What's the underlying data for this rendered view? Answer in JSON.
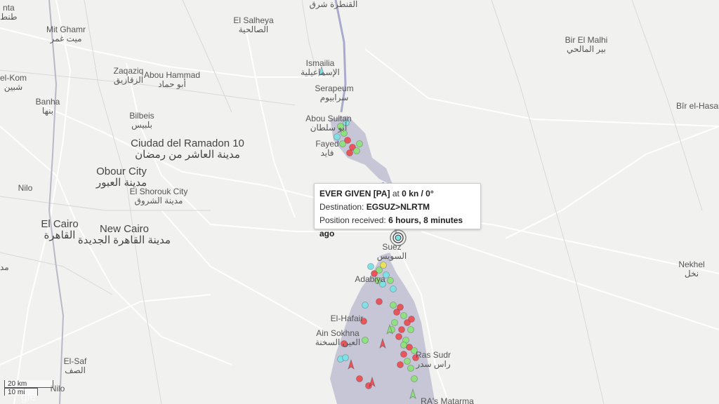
{
  "map": {
    "labels": [
      {
        "id": "qantara",
        "en": "",
        "ar": "القنطرة شرق"
      },
      {
        "id": "el-salheya",
        "en": "El Salheya",
        "ar": "الصالحية"
      },
      {
        "id": "bir-el-malhi",
        "en": "Bir El Malhi",
        "ar": "بير المالحي"
      },
      {
        "id": "mit-ghamr",
        "en": "Mit Ghamr",
        "ar": "ميت غمر"
      },
      {
        "id": "tanta",
        "en": "nta",
        "ar": "طنط"
      },
      {
        "id": "ismailia",
        "en": "Ismailia",
        "ar": "الإسماعيلية"
      },
      {
        "id": "zaqaziq",
        "en": "Zaqaziq",
        "ar": "الزقازيق"
      },
      {
        "id": "abou-hammad",
        "en": "Abou Hammad",
        "ar": "أبو حماد"
      },
      {
        "id": "serapeum",
        "en": "Serapeum",
        "ar": "سرابيوم"
      },
      {
        "id": "el-kom",
        "en": "el-Kom",
        "ar": "شبين"
      },
      {
        "id": "banha",
        "en": "Banha",
        "ar": "بنها"
      },
      {
        "id": "bilbeis",
        "en": "Bilbeis",
        "ar": "بلبيس"
      },
      {
        "id": "abou-sultan",
        "en": "Abou Sultan",
        "ar": "أبو سلطان"
      },
      {
        "id": "bir-el-hasan",
        "en": "Bîr el-Hasan",
        "ar": ""
      },
      {
        "id": "fayed",
        "en": "Fayed",
        "ar": "فايد"
      },
      {
        "id": "ramadon",
        "en": "Ciudad del Ramadon 10",
        "ar": "مدينة العاشر من رمضان"
      },
      {
        "id": "obour",
        "en": "Obour City",
        "ar": "مدينة العبور"
      },
      {
        "id": "nilo-1",
        "en": "Nilo",
        "ar": ""
      },
      {
        "id": "el-shorouk",
        "en": "El Shorouk City",
        "ar": "مدينة الشروق"
      },
      {
        "id": "el-cairo",
        "en": "El Cairo",
        "ar": "القاهرة"
      },
      {
        "id": "new-cairo",
        "en": "New Cairo",
        "ar": "مدينة القاهرة الجديدة"
      },
      {
        "id": "suez",
        "en": "Suez",
        "ar": "السويس"
      },
      {
        "id": "nekhel",
        "en": "Nekhel",
        "ar": "نخل"
      },
      {
        "id": "adabiya",
        "en": "Adabiya",
        "ar": ""
      },
      {
        "id": "el-hafair",
        "en": "El-Hafair",
        "ar": ""
      },
      {
        "id": "ain-sokhna",
        "en": "Ain Sokhna",
        "ar": "العين السخنة"
      },
      {
        "id": "ras-sudr",
        "en": "Ras Sudr",
        "ar": "راس سدر"
      },
      {
        "id": "el-saf",
        "en": "El-Saf",
        "ar": "الصف"
      },
      {
        "id": "nilo-2",
        "en": "Nilo",
        "ar": ""
      },
      {
        "id": "ras-matarma",
        "en": "RA's Matarma",
        "ar": ""
      },
      {
        "id": "left-edge",
        "en": "",
        "ar": "مد"
      }
    ]
  },
  "popup": {
    "vessel": "EVER GIVEN [PA]",
    "at_word": "at",
    "speed_course": "0 kn / 0°",
    "destination_label": "Destination:",
    "destination": "EGSUZ>NLRTM",
    "position_label": "Position received:",
    "position_time": "6 hours, 8 minutes ago"
  },
  "scale": {
    "km": "20 km",
    "mi": "10 mi"
  },
  "watermark": "gle",
  "colors": {
    "water": "#c6c6d6",
    "land": "#f1f1f0",
    "road": "#ffffff",
    "cargo": "#8fe07e",
    "tanker": "#e8565c",
    "passenger": "#7fe0e6",
    "special": "#e8e35a"
  }
}
